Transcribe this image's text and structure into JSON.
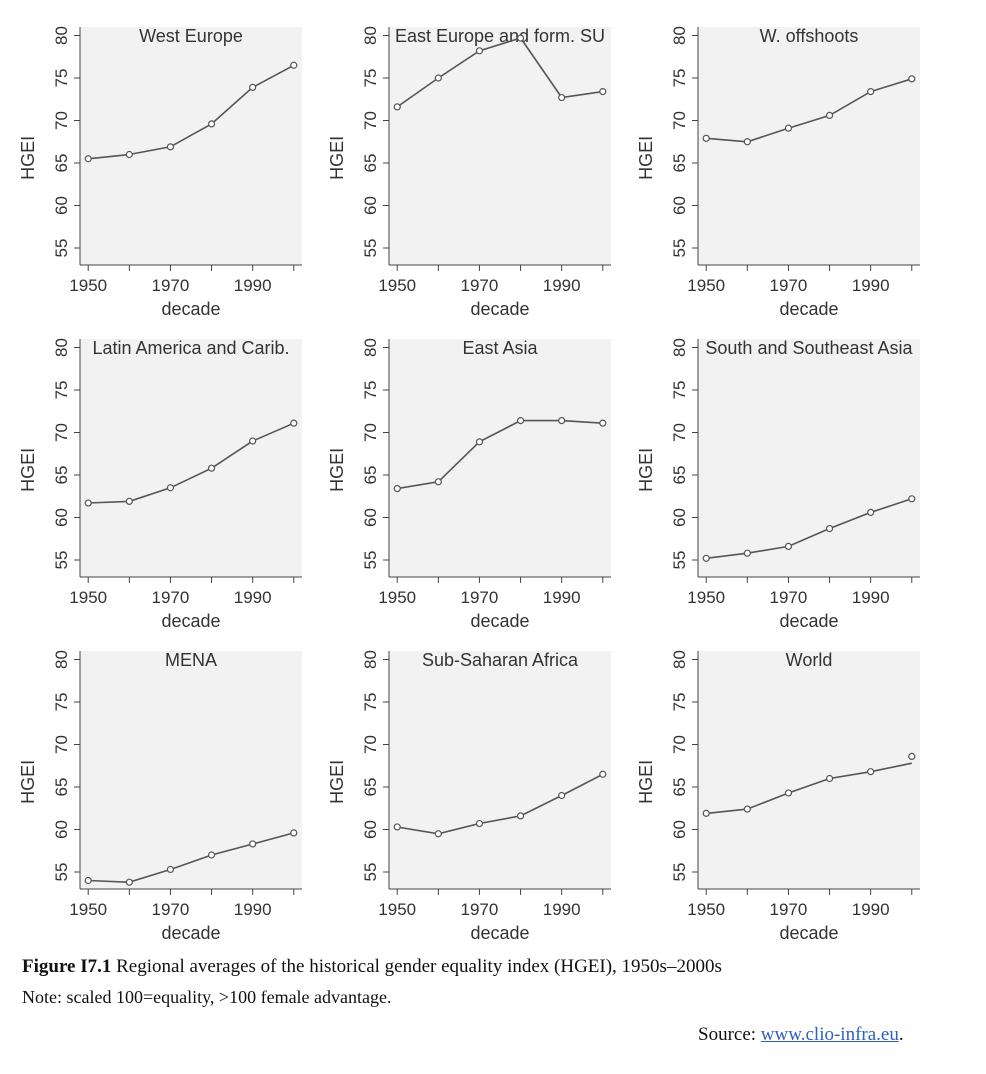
{
  "figure": {
    "caption_label": "Figure I7.1",
    "caption_text": " Regional averages of the historical gender equality index (HGEI), 1950s–2000s",
    "note": "Note: scaled 100=equality, >100 female advantage.",
    "source_prefix": "Source: ",
    "source_link": "www.clio-infra.eu",
    "source_suffix": "."
  },
  "chart_data": [
    {
      "type": "line",
      "title": "West Europe",
      "xlabel": "decade",
      "ylabel": "HGEI",
      "x": [
        1950,
        1960,
        1970,
        1980,
        1990,
        2000
      ],
      "series": [
        {
          "values": [
            65.5,
            66.0,
            66.9,
            69.6,
            73.9,
            76.5
          ]
        }
      ],
      "xticks": [
        1950,
        1970,
        1990
      ],
      "yticks": [
        55,
        60,
        65,
        70,
        75,
        80
      ],
      "ylim": [
        53,
        81
      ],
      "xlim": [
        1948,
        2002
      ]
    },
    {
      "type": "line",
      "title": "East Europe and form. SU",
      "xlabel": "decade",
      "ylabel": "HGEI",
      "x": [
        1950,
        1960,
        1970,
        1980,
        1990,
        2000
      ],
      "series": [
        {
          "values": [
            71.6,
            75.0,
            78.2,
            79.7,
            72.7,
            73.4
          ]
        }
      ],
      "xticks": [
        1950,
        1970,
        1990
      ],
      "yticks": [
        55,
        60,
        65,
        70,
        75,
        80
      ],
      "ylim": [
        53,
        81
      ],
      "xlim": [
        1948,
        2002
      ]
    },
    {
      "type": "line",
      "title": "W. offshoots",
      "xlabel": "decade",
      "ylabel": "HGEI",
      "x": [
        1950,
        1960,
        1970,
        1980,
        1990,
        2000
      ],
      "series": [
        {
          "values": [
            67.9,
            67.5,
            69.1,
            70.6,
            73.4,
            74.9
          ]
        }
      ],
      "xticks": [
        1950,
        1970,
        1990
      ],
      "yticks": [
        55,
        60,
        65,
        70,
        75,
        80
      ],
      "ylim": [
        53,
        81
      ],
      "xlim": [
        1948,
        2002
      ]
    },
    {
      "type": "line",
      "title": "Latin America and Carib.",
      "xlabel": "decade",
      "ylabel": "HGEI",
      "x": [
        1950,
        1960,
        1970,
        1980,
        1990,
        2000
      ],
      "series": [
        {
          "values": [
            61.7,
            61.9,
            63.5,
            65.8,
            69.0,
            71.1
          ]
        }
      ],
      "xticks": [
        1950,
        1970,
        1990
      ],
      "yticks": [
        55,
        60,
        65,
        70,
        75,
        80
      ],
      "ylim": [
        53,
        81
      ],
      "xlim": [
        1948,
        2002
      ]
    },
    {
      "type": "line",
      "title": "East Asia",
      "xlabel": "decade",
      "ylabel": "HGEI",
      "x": [
        1950,
        1960,
        1970,
        1980,
        1990,
        2000
      ],
      "series": [
        {
          "values": [
            63.4,
            64.2,
            68.9,
            71.4,
            71.4,
            71.1
          ]
        }
      ],
      "xticks": [
        1950,
        1970,
        1990
      ],
      "yticks": [
        55,
        60,
        65,
        70,
        75,
        80
      ],
      "ylim": [
        53,
        81
      ],
      "xlim": [
        1948,
        2002
      ]
    },
    {
      "type": "line",
      "title": "South and Southeast Asia",
      "xlabel": "decade",
      "ylabel": "HGEI",
      "x": [
        1950,
        1960,
        1970,
        1980,
        1990,
        2000
      ],
      "series": [
        {
          "values": [
            55.2,
            55.8,
            56.6,
            58.7,
            60.6,
            62.2
          ]
        }
      ],
      "xticks": [
        1950,
        1970,
        1990
      ],
      "yticks": [
        55,
        60,
        65,
        70,
        75,
        80
      ],
      "ylim": [
        53,
        81
      ],
      "xlim": [
        1948,
        2002
      ]
    },
    {
      "type": "line",
      "title": "MENA",
      "xlabel": "decade",
      "ylabel": "HGEI",
      "x": [
        1950,
        1960,
        1970,
        1980,
        1990,
        2000
      ],
      "series": [
        {
          "values": [
            54.0,
            53.8,
            55.3,
            57.0,
            58.3,
            59.6
          ]
        }
      ],
      "xticks": [
        1950,
        1970,
        1990
      ],
      "yticks": [
        55,
        60,
        65,
        70,
        75,
        80
      ],
      "ylim": [
        53,
        81
      ],
      "xlim": [
        1948,
        2002
      ]
    },
    {
      "type": "line",
      "title": "Sub-Saharan Africa",
      "xlabel": "decade",
      "ylabel": "HGEI",
      "x": [
        1950,
        1960,
        1970,
        1980,
        1990,
        2000
      ],
      "series": [
        {
          "values": [
            60.3,
            59.5,
            60.7,
            61.6,
            64.0,
            66.5
          ]
        }
      ],
      "xticks": [
        1950,
        1970,
        1990
      ],
      "yticks": [
        55,
        60,
        65,
        70,
        75,
        80
      ],
      "ylim": [
        53,
        81
      ],
      "xlim": [
        1948,
        2002
      ]
    },
    {
      "type": "line",
      "title": "World",
      "xlabel": "decade",
      "ylabel": "HGEI",
      "x": [
        1950,
        1960,
        1970,
        1980,
        1990,
        2000
      ],
      "series": [
        {
          "values": [
            61.9,
            62.4,
            64.3,
            66.0,
            66.8,
            67.8
          ]
        }
      ],
      "extra_points": [
        {
          "x": 2000,
          "y": 68.6
        }
      ],
      "xticks": [
        1950,
        1970,
        1990
      ],
      "yticks": [
        55,
        60,
        65,
        70,
        75,
        80
      ],
      "ylim": [
        53,
        81
      ],
      "xlim": [
        1948,
        2002
      ]
    }
  ]
}
